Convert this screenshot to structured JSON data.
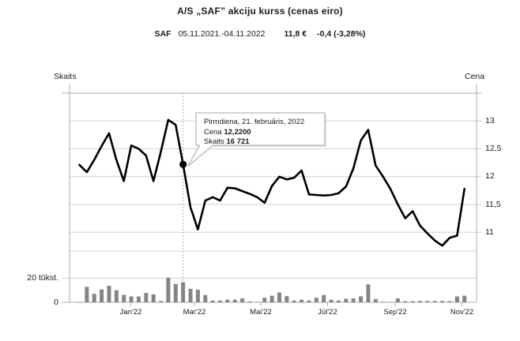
{
  "header": {
    "title": "A/S „SAF” akciju kurss (cenas eiro)",
    "symbol": "SAF",
    "date_range": "05.11.2021.-04.11.2022",
    "last_price": "11,8 €",
    "change": "-0,4 (-3,28%)"
  },
  "axes": {
    "left_label": "Skaits",
    "right_label": "Cena",
    "price_tick_labels": [
      "13",
      "12,5",
      "12",
      "11,5",
      "11"
    ],
    "volume_tick_labels": [
      "20 tūkst.",
      "0"
    ]
  },
  "tooltip": {
    "date": "Pirmdiena, 21. februāris, 2022",
    "price_label": "Cena",
    "price_value": "12,2200",
    "volume_label": "Skaits",
    "volume_value": "16 721"
  },
  "colors": {
    "line": "#000000",
    "bars": "#858585",
    "grid": "#d2d2d2",
    "axis": "#adadad",
    "dotted_line": "#9a9a9a",
    "tooltip_border": "#a6a6a6",
    "marker": "#000000"
  },
  "chart_data": {
    "type": "line+bar",
    "title": "A/S „SAF” akciju kurss (cenas eiro)",
    "x_unit": "weekly closes, 05.11.2021 - 04.11.2022",
    "series": [
      {
        "name": "Cena (eiro)",
        "type": "line"
      },
      {
        "name": "Skaits",
        "type": "bar"
      }
    ],
    "prices": [
      12.21,
      12.08,
      12.3,
      12.55,
      12.78,
      12.3,
      11.92,
      12.56,
      12.5,
      12.38,
      11.92,
      12.45,
      13.02,
      12.93,
      12.22,
      11.45,
      11.05,
      11.57,
      11.63,
      11.57,
      11.8,
      11.79,
      11.74,
      11.69,
      11.63,
      11.53,
      11.83,
      12.0,
      11.95,
      11.98,
      12.11,
      11.68,
      11.67,
      11.66,
      11.67,
      11.7,
      11.82,
      12.15,
      12.65,
      12.84,
      12.2,
      12.0,
      11.78,
      11.5,
      11.25,
      11.38,
      11.12,
      10.98,
      10.85,
      10.76,
      10.9,
      10.94,
      11.78
    ],
    "volumes_thousands": [
      0.4,
      12.9,
      7.1,
      10.7,
      13.8,
      10.0,
      6.2,
      4.9,
      4.9,
      7.8,
      6.7,
      1.1,
      20.5,
      15.2,
      16.7,
      11.2,
      10.5,
      6.0,
      1.5,
      1.5,
      2.2,
      2.2,
      3.3,
      0.7,
      0.2,
      3.8,
      5.5,
      8.2,
      5.1,
      1.5,
      2.2,
      1.5,
      3.8,
      6.0,
      2.2,
      1.5,
      2.9,
      3.3,
      5.0,
      14.9,
      2.7,
      0.5,
      0.3,
      3.3,
      0.9,
      0.9,
      1.1,
      1.1,
      1.1,
      1.1,
      0.9,
      4.9,
      5.5
    ],
    "price_ticks": [
      13,
      12.5,
      12,
      11.5,
      11
    ],
    "price_axis_range": [
      10.66,
      13.5
    ],
    "volume_ticks_thousands": [
      20,
      0
    ],
    "months": [
      {
        "label": "Jan'22",
        "week_pos": 6.94
      },
      {
        "label": "Mar'22",
        "week_pos": 15.53
      },
      {
        "label": "Mai'22",
        "week_pos": 24.49
      },
      {
        "label": "Jūl'22",
        "week_pos": 33.51
      },
      {
        "label": "Sep'22",
        "week_pos": 42.64
      },
      {
        "label": "Nov'22",
        "week_pos": 51.66
      }
    ],
    "marked_point": {
      "index": 14,
      "price": 12.22,
      "volume": 16721
    },
    "grid": true,
    "legend": false
  }
}
